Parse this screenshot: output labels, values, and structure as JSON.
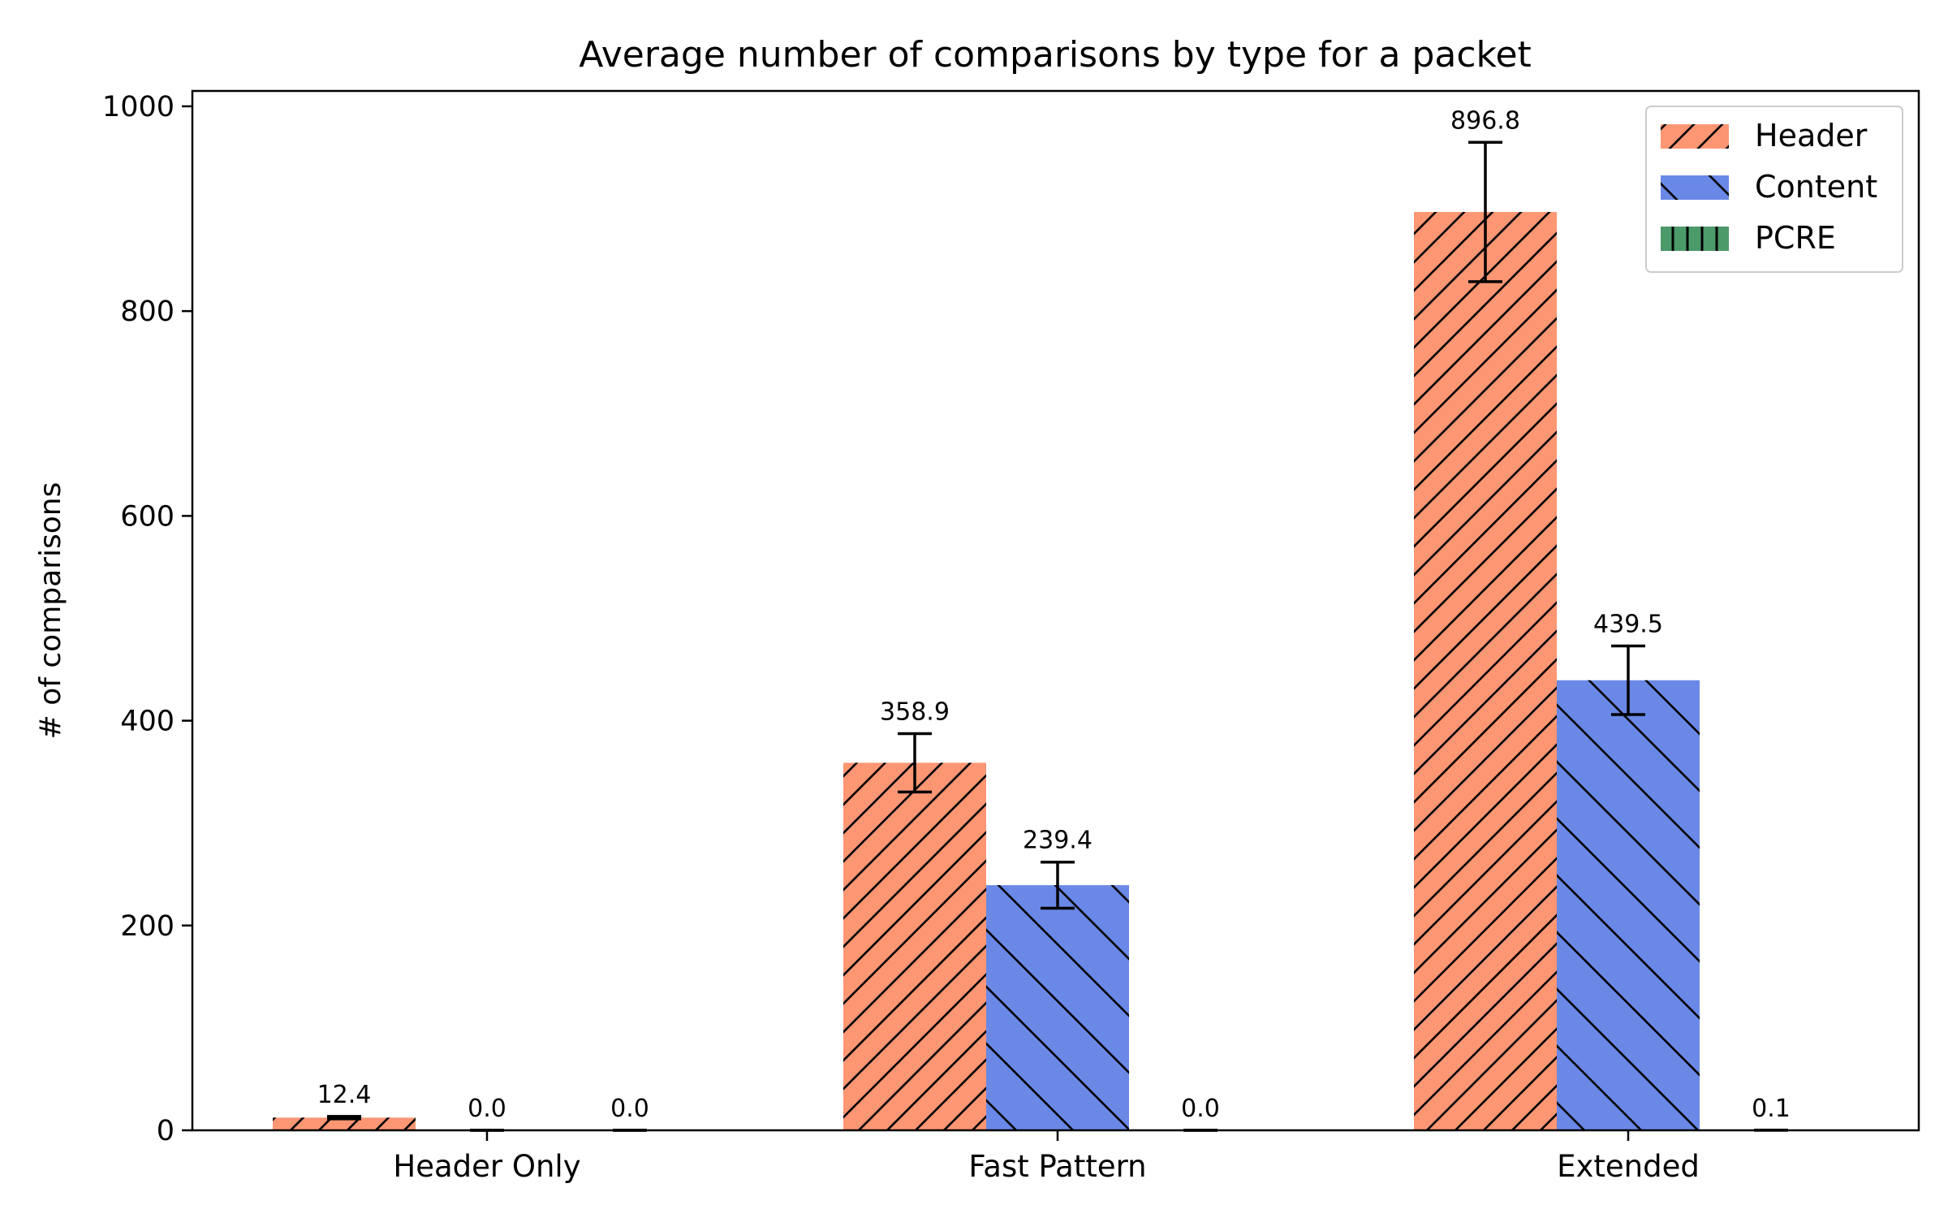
{
  "chart_data": {
    "type": "bar",
    "title": "Average number of comparisons by type for a packet",
    "xlabel": "",
    "ylabel": "# of comparisons",
    "categories": [
      "Header Only",
      "Fast Pattern",
      "Extended"
    ],
    "ylim": [
      0,
      1015
    ],
    "yticks": [
      "0",
      "200",
      "400",
      "600",
      "800",
      "1000"
    ],
    "grid": false,
    "legend_position": "top-right",
    "series": [
      {
        "name": "Header",
        "color": "#fc9673",
        "hatch": "forward-diagonal",
        "values": [
          12.4,
          358.9,
          896.8
        ],
        "errors": [
          1.2,
          28.5,
          68.0
        ],
        "labels": [
          "12.4",
          "358.9",
          "896.8"
        ]
      },
      {
        "name": "Content",
        "color": "#6a88e6",
        "hatch": "back-diagonal",
        "values": [
          0.0,
          239.4,
          439.5
        ],
        "errors": [
          0.0,
          22.5,
          33.5
        ],
        "labels": [
          "0.0",
          "239.4",
          "439.5"
        ]
      },
      {
        "name": "PCRE",
        "color": "#4c9a6a",
        "hatch": "vertical",
        "values": [
          0.0,
          0.0,
          0.1
        ],
        "errors": [
          0.0,
          0.0,
          0.0
        ],
        "labels": [
          "0.0",
          "0.0",
          "0.1"
        ]
      }
    ]
  }
}
